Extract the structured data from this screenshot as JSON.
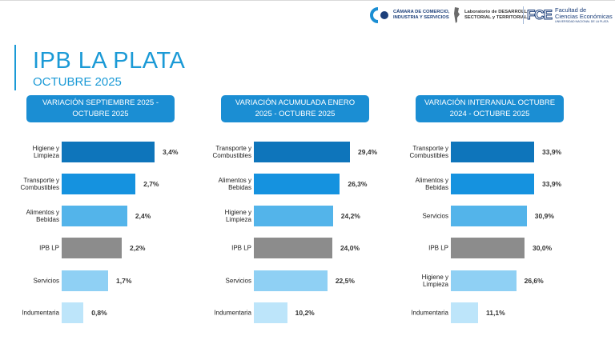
{
  "header": {
    "title": "IPB LA PLATA",
    "subtitle": "OCTUBRE 2025",
    "logos": {
      "camara": {
        "line1": "CÁMARA DE COMERCIO,",
        "line2": "INDUSTRIA Y SERVICIOS"
      },
      "laboratorio": {
        "line1": "Laboratorio de DESARROLLO",
        "line2": "SECTORIAL y TERRITORIAL"
      },
      "facultad": {
        "mark": "FCE",
        "line1": "Facultad de",
        "line2": "Ciencias Económicas",
        "line3": "UNIVERSIDAD NACIONAL DE LA PLATA"
      }
    }
  },
  "colors": {
    "accent": "#1b9ad6",
    "panel_title_bg": "#1b8ed3",
    "shade_dark": "#0e75bb",
    "shade_mid": "#1592df",
    "shade_light": "#53b4ea",
    "shade_pale": "#8fd0f4",
    "shade_faint": "#bde5fa",
    "ipb_gray": "#8c8c8c"
  },
  "chart_data": [
    {
      "type": "bar",
      "orientation": "horizontal",
      "title_lines": [
        "VARIACIÓN SEPTIEMBRE 2025 -",
        "OCTUBRE 2025"
      ],
      "categories": [
        [
          "Higiene y",
          "Limpieza"
        ],
        [
          "Transporte y",
          "Combustibles"
        ],
        [
          "Alimentos y",
          "Bebidas"
        ],
        [
          "IPB LP"
        ],
        [
          "Servicios"
        ],
        [
          "Indumentaria"
        ]
      ],
      "values": [
        3.4,
        2.7,
        2.4,
        2.2,
        1.7,
        0.8
      ],
      "labels": [
        "3,4%",
        "2,7%",
        "2,4%",
        "2,2%",
        "1,7%",
        "0,8%"
      ],
      "shades": [
        "shade_dark",
        "shade_mid",
        "shade_light",
        "ipb_gray",
        "shade_pale",
        "shade_faint"
      ],
      "xlim": [
        0,
        3.4
      ]
    },
    {
      "type": "bar",
      "orientation": "horizontal",
      "title_lines": [
        "VARIACIÓN ACUMULADA ENERO",
        "2025 - OCTUBRE 2025"
      ],
      "categories": [
        [
          "Transporte y",
          "Combustibles"
        ],
        [
          "Alimentos y",
          "Bebidas"
        ],
        [
          "Higiene y",
          "Limpieza"
        ],
        [
          "IPB LP"
        ],
        [
          "Servicios"
        ],
        [
          "Indumentaria"
        ]
      ],
      "values": [
        29.4,
        26.3,
        24.2,
        24.0,
        22.5,
        10.2
      ],
      "labels": [
        "29,4%",
        "26,3%",
        "24,2%",
        "24,0%",
        "22,5%",
        "10,2%"
      ],
      "shades": [
        "shade_dark",
        "shade_mid",
        "shade_light",
        "ipb_gray",
        "shade_pale",
        "shade_faint"
      ],
      "xlim": [
        0,
        29.4
      ]
    },
    {
      "type": "bar",
      "orientation": "horizontal",
      "title_lines": [
        "VARIACIÓN INTERANUAL OCTUBRE",
        "2024 - OCTUBRE 2025"
      ],
      "categories": [
        [
          "Transporte y",
          "Combustibles"
        ],
        [
          "Alimentos y",
          "Bebidas"
        ],
        [
          "Servicios"
        ],
        [
          "IPB LP"
        ],
        [
          "Higiene y",
          "Limpieza"
        ],
        [
          "Indumentaria"
        ]
      ],
      "values": [
        33.9,
        33.9,
        30.9,
        30.0,
        26.6,
        11.1
      ],
      "labels": [
        "33,9%",
        "33,9%",
        "30,9%",
        "30,0%",
        "26,6%",
        "11,1%"
      ],
      "shades": [
        "shade_dark",
        "shade_mid",
        "shade_light",
        "ipb_gray",
        "shade_pale",
        "shade_faint"
      ],
      "xlim": [
        0,
        33.9
      ]
    }
  ]
}
